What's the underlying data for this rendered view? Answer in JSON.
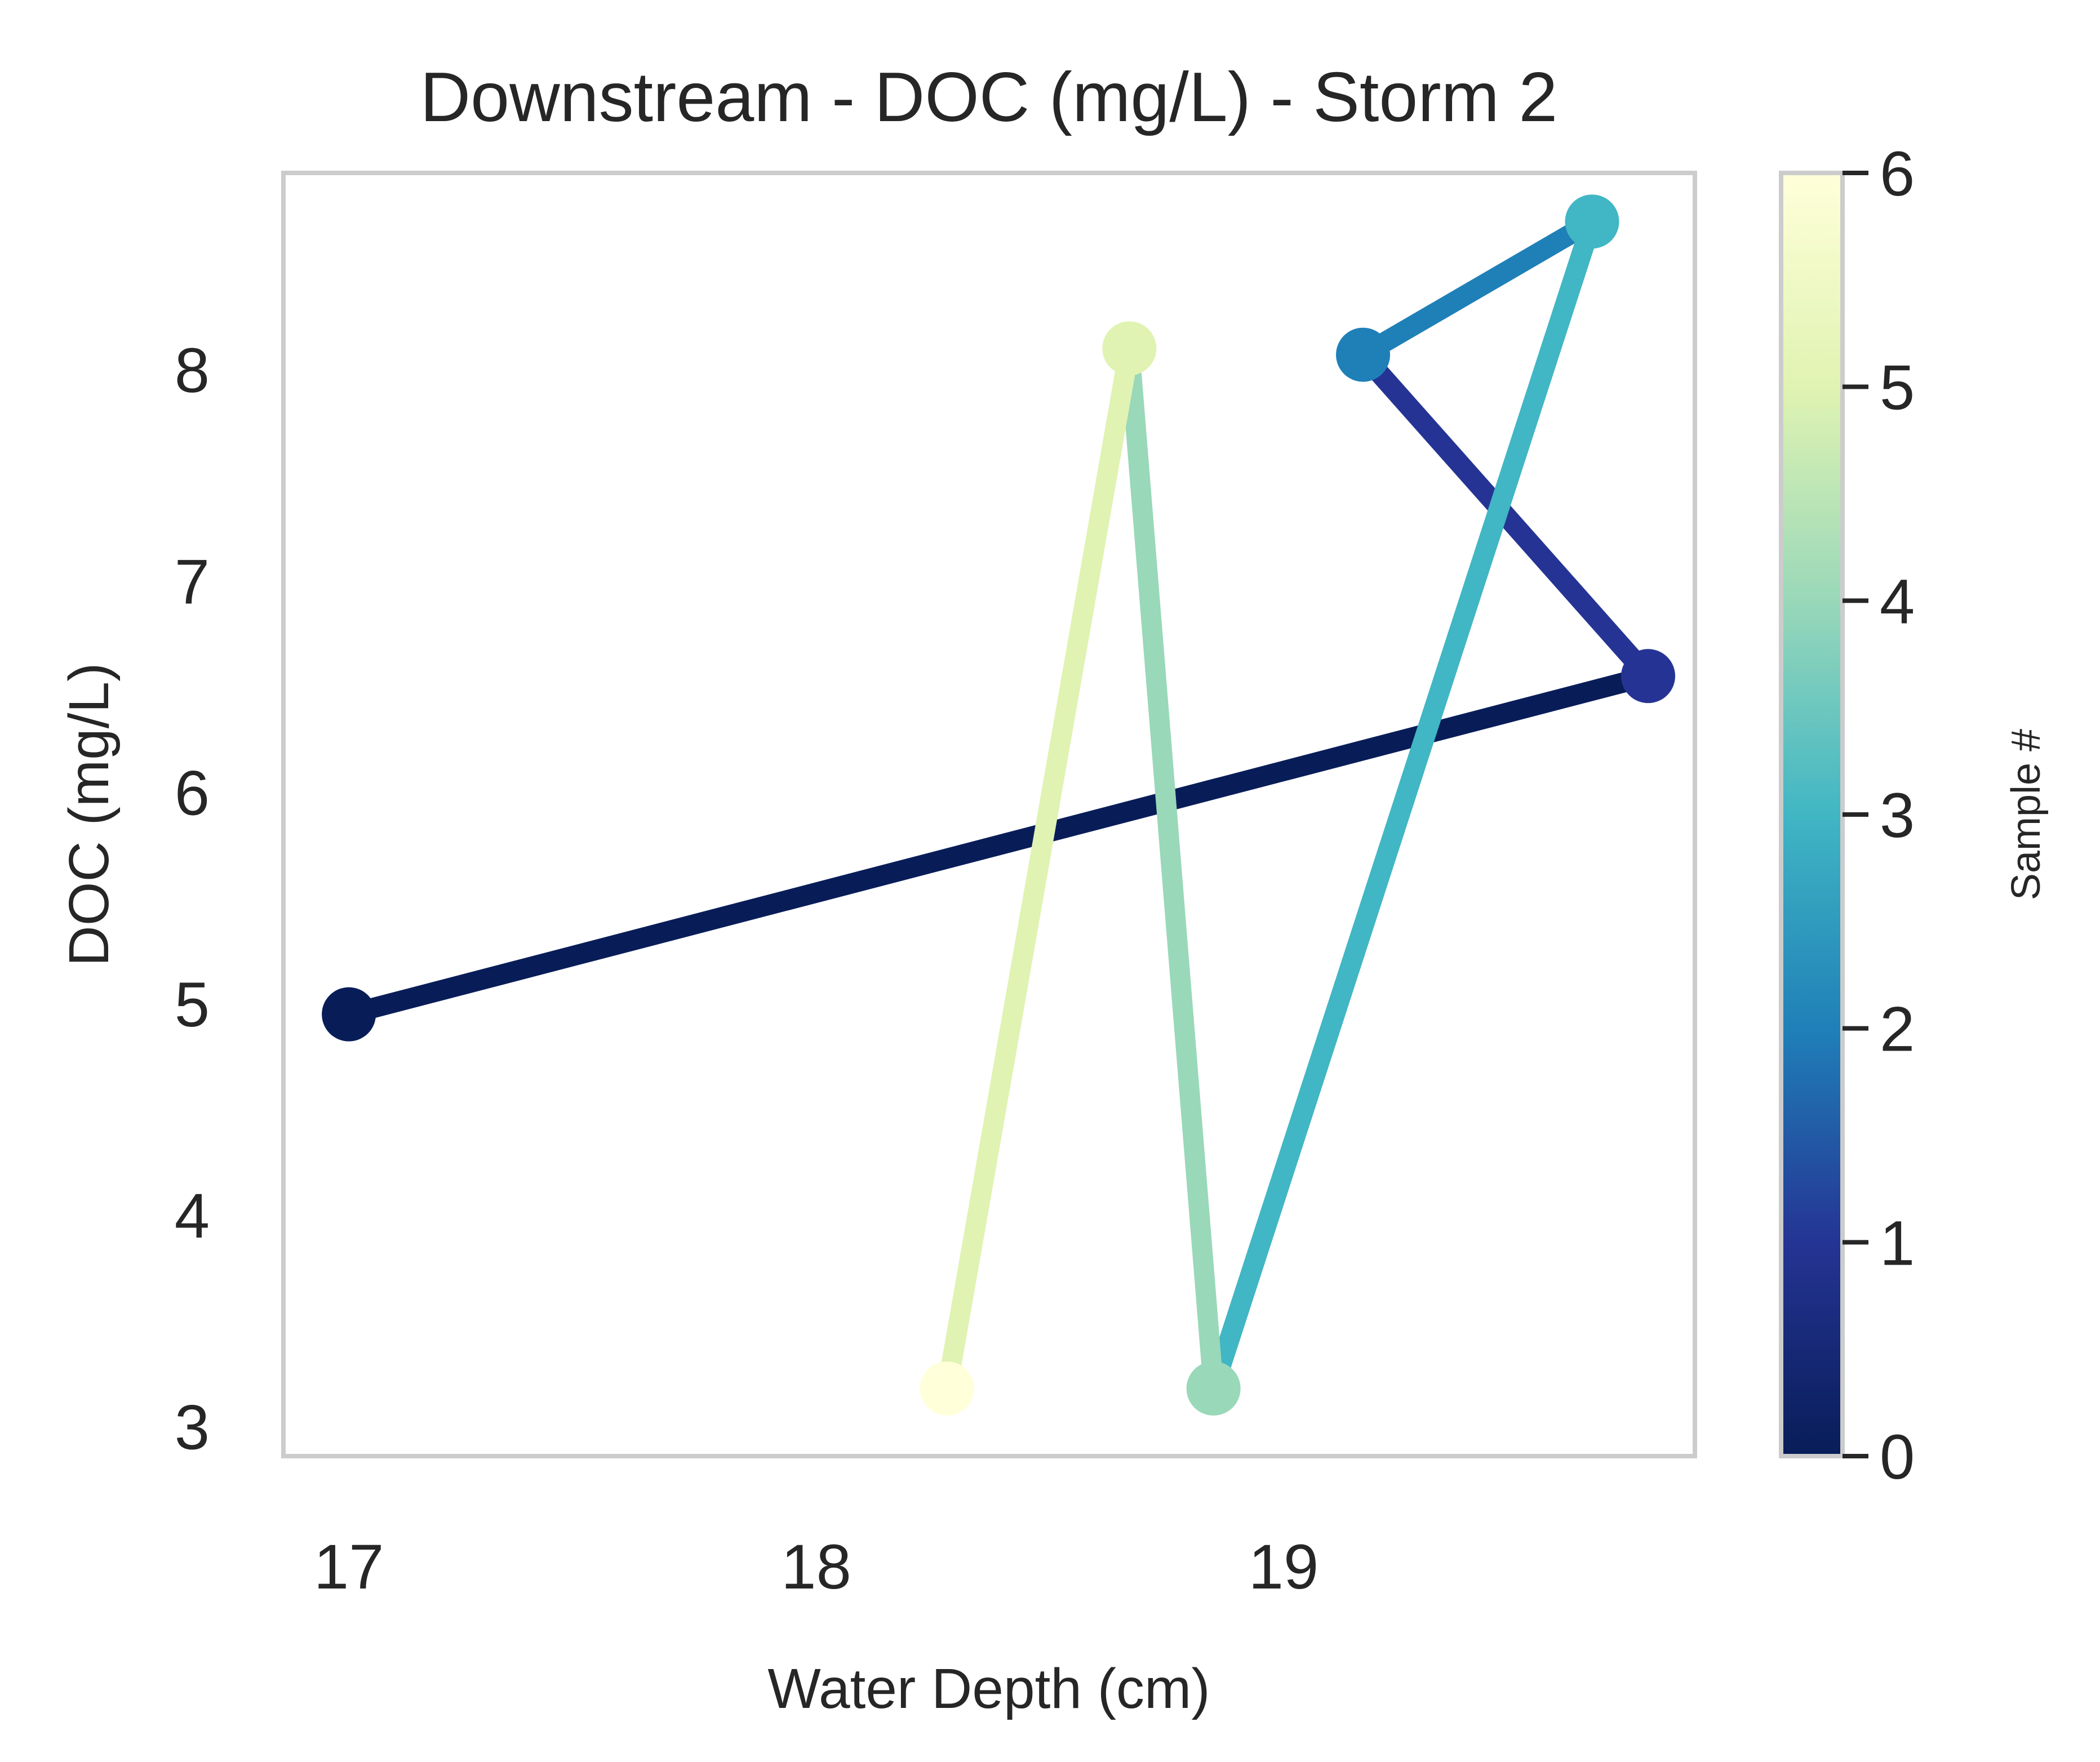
{
  "chart_data": {
    "type": "line",
    "title": "Downstream - DOC (mg/L) - Storm 2",
    "xlabel": "Water Depth (cm)",
    "ylabel": "DOC (mg/L)",
    "xlim": [
      16.86,
      19.88
    ],
    "ylim": [
      2.86,
      8.93
    ],
    "xticks": [
      17,
      18,
      19
    ],
    "yticks": [
      3,
      4,
      5,
      6,
      7,
      8
    ],
    "grid": false,
    "series": [
      {
        "name": "Sample #",
        "sample": [
          0,
          1,
          2,
          3,
          4,
          5,
          6
        ],
        "x": [
          17.0,
          19.78,
          19.17,
          19.66,
          18.85,
          18.67,
          18.28
        ],
        "y": [
          4.95,
          6.55,
          8.07,
          8.7,
          3.18,
          8.1,
          3.18
        ]
      }
    ],
    "colorbar": {
      "label": "Sample #",
      "range": [
        0,
        6
      ],
      "ticks": [
        0,
        1,
        2,
        3,
        4,
        5,
        6
      ],
      "colormap": "YlGnBu_r",
      "colors": [
        "#081d58",
        "#253494",
        "#1f80b8",
        "#41b6c4",
        "#99d8b9",
        "#e0f3b2",
        "#ffffd9"
      ]
    }
  }
}
